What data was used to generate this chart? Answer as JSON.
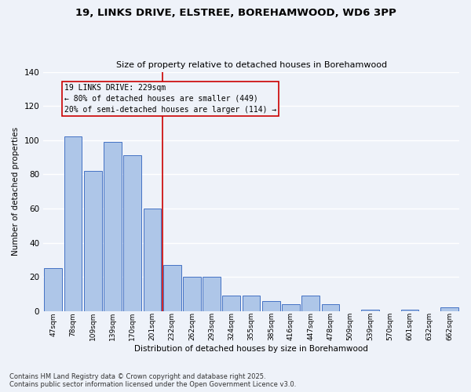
{
  "title1": "19, LINKS DRIVE, ELSTREE, BOREHAMWOOD, WD6 3PP",
  "title2": "Size of property relative to detached houses in Borehamwood",
  "xlabel": "Distribution of detached houses by size in Borehamwood",
  "ylabel": "Number of detached properties",
  "categories": [
    "47sqm",
    "78sqm",
    "109sqm",
    "139sqm",
    "170sqm",
    "201sqm",
    "232sqm",
    "262sqm",
    "293sqm",
    "324sqm",
    "355sqm",
    "385sqm",
    "416sqm",
    "447sqm",
    "478sqm",
    "509sqm",
    "539sqm",
    "570sqm",
    "601sqm",
    "632sqm",
    "662sqm"
  ],
  "values": [
    25,
    102,
    82,
    99,
    91,
    60,
    27,
    20,
    20,
    9,
    9,
    6,
    4,
    9,
    4,
    0,
    1,
    0,
    1,
    0,
    2
  ],
  "bar_color": "#aec6e8",
  "bar_edge_color": "#4472c4",
  "vline_x_index": 5.5,
  "vline_color": "#cc0000",
  "annotation_line1": "19 LINKS DRIVE: 229sqm",
  "annotation_line2": "← 80% of detached houses are smaller (449)",
  "annotation_line3": "20% of semi-detached houses are larger (114) →",
  "ylim": [
    0,
    140
  ],
  "yticks": [
    0,
    20,
    40,
    60,
    80,
    100,
    120,
    140
  ],
  "bg_color": "#eef2f9",
  "grid_color": "#ffffff",
  "footer1": "Contains HM Land Registry data © Crown copyright and database right 2025.",
  "footer2": "Contains public sector information licensed under the Open Government Licence v3.0."
}
